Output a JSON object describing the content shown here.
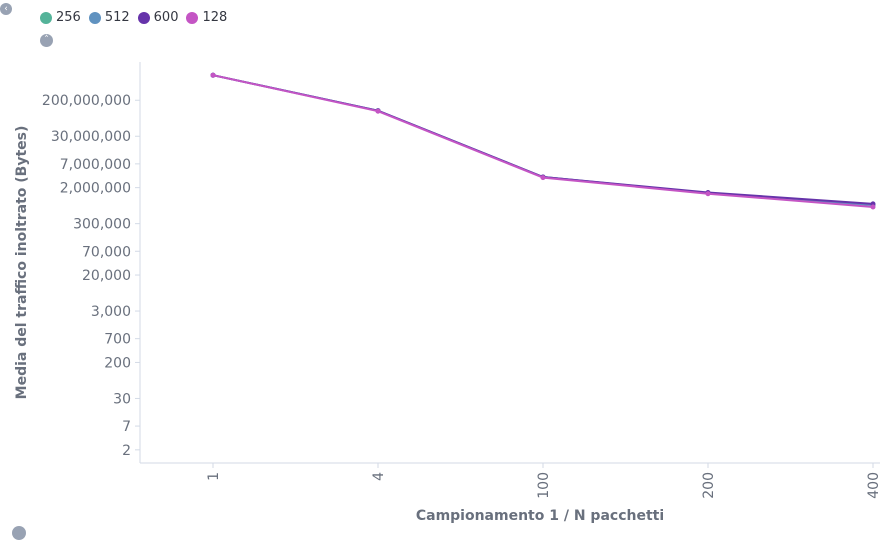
{
  "legend": {
    "items": [
      {
        "label": "256",
        "color": "#54b399"
      },
      {
        "label": "512",
        "color": "#6092c0"
      },
      {
        "label": "600",
        "color": "#6633aa"
      },
      {
        "label": "128",
        "color": "#c455c4"
      }
    ]
  },
  "chart_data": {
    "type": "line",
    "xlabel": "Campionamento 1 / N pacchetti",
    "ylabel": "Media del traffico inoltrato (Bytes)",
    "categories": [
      "1",
      "4",
      "100",
      "200",
      "400"
    ],
    "yscale": "log",
    "ylim": [
      1,
      1500000000
    ],
    "yticks": [
      2,
      7,
      30,
      200,
      700,
      3000,
      20000,
      70000,
      300000,
      2000000,
      7000000,
      30000000,
      200000000
    ],
    "ytick_labels": [
      "2",
      "7",
      "30",
      "200",
      "700",
      "3,000",
      "20,000",
      "70,000",
      "300,000",
      "2,000,000",
      "7,000,000",
      "30,000,000",
      "200,000,000"
    ],
    "grid": false,
    "legend_position": "top-left",
    "series": [
      {
        "name": "256",
        "color": "#54b399",
        "values": [
          750000000,
          115000000,
          3500000,
          1500000,
          800000
        ]
      },
      {
        "name": "512",
        "color": "#6092c0",
        "values": [
          750000000,
          115000000,
          3500000,
          1500000,
          800000
        ]
      },
      {
        "name": "600",
        "color": "#6633aa",
        "values": [
          750000000,
          115000000,
          3500000,
          1550000,
          850000
        ]
      },
      {
        "name": "128",
        "color": "#c455c4",
        "values": [
          750000000,
          112000000,
          3400000,
          1450000,
          720000
        ]
      }
    ]
  }
}
